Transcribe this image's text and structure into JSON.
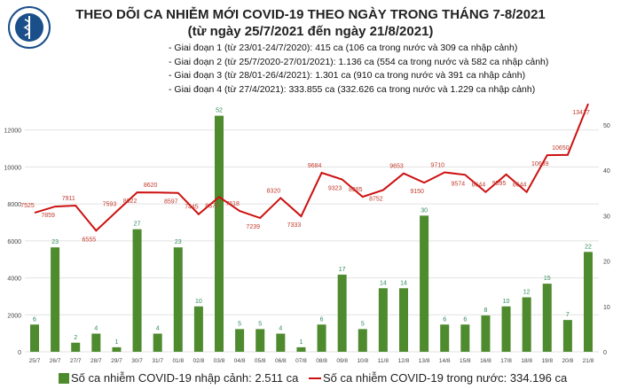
{
  "header": {
    "logo_text": "BỘ Y TẾ",
    "title": "THEO DÕI CA NHIỄM MỚI COVID-19 THEO NGÀY TRONG THÁNG 7-8/2021",
    "subtitle": "(từ ngày 25/7/2021 đến ngày 21/8/2021)"
  },
  "notes": [
    "- Giai đoạn 1 (từ 23/01-24/7/2020): 415 ca (106 ca trong nước và 309 ca nhập cảnh)",
    "- Giai đoạn 2 (từ 25/7/2020-27/01/2021): 1.136 ca (554 ca trong nước và 582 ca nhập cảnh)",
    "- Giai đoạn 3 (từ 28/01-26/4/2021): 1.301 ca (910 ca trong nước và 391 ca nhập cảnh)",
    "- Giai đoạn 4 (từ 27/4/2021): 333.855 ca (332.626 ca trong nước và 1.229 ca nhập cảnh)"
  ],
  "chart_data": {
    "type": "bar+line",
    "categories": [
      "25/7",
      "26/7",
      "27/7",
      "28/7",
      "29/7",
      "30/7",
      "31/7",
      "01/8",
      "02/8",
      "03/8",
      "04/8",
      "05/8",
      "06/8",
      "07/8",
      "08/8",
      "09/8",
      "10/8",
      "11/8",
      "12/8",
      "13/8",
      "14/8",
      "15/8",
      "16/8",
      "17/8",
      "18/8",
      "19/8",
      "20/8",
      "21/8"
    ],
    "series": [
      {
        "name": "Số ca nhiễm COVID-19 nhập cảnh: 2.511 ca",
        "type": "bar",
        "axis": "right",
        "color": "#4e8a2e",
        "values": [
          6,
          23,
          2,
          4,
          1,
          27,
          4,
          23,
          10,
          52,
          5,
          5,
          4,
          1,
          6,
          17,
          5,
          14,
          14,
          30,
          6,
          6,
          8,
          10,
          12,
          15,
          7,
          22
        ]
      },
      {
        "name": "Số ca nhiễm COVID-19 trong nước: 334.196 ca",
        "type": "line",
        "axis": "left",
        "color": "#cc1111",
        "values": [
          7525,
          7859,
          7911,
          6555,
          7593,
          8622,
          8620,
          8597,
          7445,
          8377,
          7618,
          7239,
          8320,
          7333,
          9684,
          9323,
          8385,
          8752,
          9653,
          9150,
          9710,
          9574,
          8644,
          9595,
          8644,
          10639,
          10650,
          13417
        ]
      }
    ],
    "left_ticks": [
      0,
      2000,
      4000,
      6000,
      8000,
      10000,
      12000
    ],
    "right_ticks": [
      0,
      10,
      20,
      30,
      40,
      50
    ],
    "ylim_left": [
      0,
      14000
    ],
    "ylim_right": [
      0,
      57
    ],
    "grid": true,
    "legend": "bottom"
  }
}
